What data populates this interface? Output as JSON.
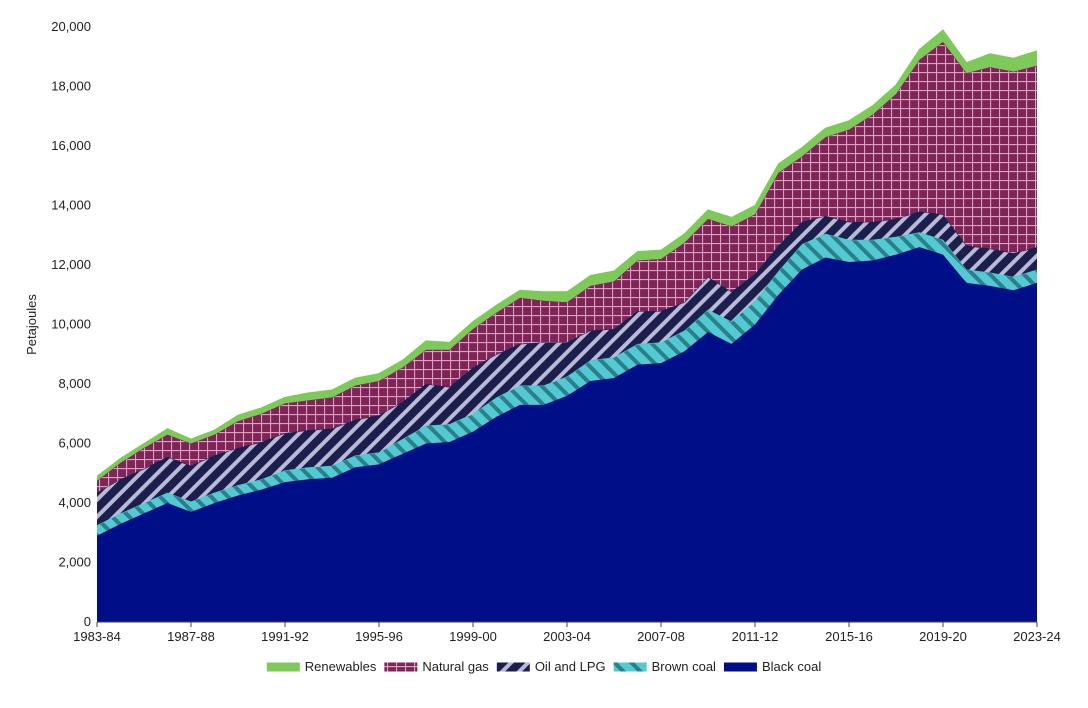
{
  "chart_data": {
    "type": "area",
    "stacked": true,
    "title": "",
    "xlabel": "",
    "ylabel": "Petajoules",
    "ylim": [
      0,
      20000
    ],
    "yticks": [
      0,
      2000,
      4000,
      6000,
      8000,
      10000,
      12000,
      14000,
      16000,
      18000,
      20000
    ],
    "ytick_labels": [
      "0",
      "2,000",
      "4,000",
      "6,000",
      "8,000",
      "10,000",
      "12,000",
      "14,000",
      "16,000",
      "18,000",
      "20,000"
    ],
    "xtick_labels": [
      "1983-84",
      "1987-88",
      "1991-92",
      "1995-96",
      "1999-00",
      "2003-04",
      "2007-08",
      "2011-12",
      "2015-16",
      "2019-20",
      "2023-24"
    ],
    "grid": false,
    "legend_position": "bottom",
    "categories": [
      "1983-84",
      "1984-85",
      "1985-86",
      "1986-87",
      "1987-88",
      "1988-89",
      "1989-90",
      "1990-91",
      "1991-92",
      "1992-93",
      "1993-94",
      "1994-95",
      "1995-96",
      "1996-97",
      "1997-98",
      "1998-99",
      "1999-00",
      "2000-01",
      "2001-02",
      "2002-03",
      "2003-04",
      "2004-05",
      "2005-06",
      "2006-07",
      "2007-08",
      "2008-09",
      "2009-10",
      "2010-11",
      "2011-12",
      "2012-13",
      "2013-14",
      "2014-15",
      "2015-16",
      "2016-17",
      "2017-18",
      "2018-19",
      "2019-20",
      "2020-21",
      "2021-22",
      "2022-23",
      "2023-24"
    ],
    "series": [
      {
        "name": "Black coal",
        "color": "#000f87",
        "pattern": "solid",
        "values": [
          2900,
          3300,
          3650,
          4000,
          3700,
          4000,
          4250,
          4450,
          4700,
          4800,
          4850,
          5200,
          5300,
          5650,
          6000,
          6050,
          6400,
          6900,
          7300,
          7300,
          7600,
          8100,
          8200,
          8650,
          8700,
          9100,
          9750,
          9350,
          10000,
          11000,
          11850,
          12250,
          12100,
          12150,
          12350,
          12600,
          12350,
          11400,
          11300,
          11150,
          11400
        ]
      },
      {
        "name": "Brown coal",
        "color": "#53c9d1",
        "pattern": "hatch",
        "values": [
          350,
          350,
          350,
          350,
          350,
          350,
          350,
          350,
          400,
          400,
          400,
          400,
          400,
          500,
          600,
          600,
          600,
          650,
          650,
          650,
          650,
          700,
          700,
          700,
          700,
          700,
          750,
          750,
          800,
          800,
          850,
          800,
          750,
          700,
          600,
          500,
          500,
          450,
          450,
          450,
          450
        ]
      },
      {
        "name": "Oil and LPG",
        "color": "#1c1f4e",
        "pattern": "hatch",
        "values": [
          1100,
          1150,
          1150,
          1200,
          1200,
          1250,
          1250,
          1250,
          1250,
          1250,
          1250,
          1200,
          1250,
          1250,
          1400,
          1250,
          1550,
          1450,
          1400,
          1450,
          1150,
          1000,
          950,
          1100,
          1050,
          950,
          1100,
          1000,
          900,
          850,
          750,
          600,
          600,
          600,
          600,
          700,
          850,
          800,
          800,
          800,
          750
        ]
      },
      {
        "name": "Natural gas",
        "color": "#7e2457",
        "pattern": "grid",
        "values": [
          400,
          550,
          700,
          750,
          750,
          700,
          900,
          950,
          1000,
          1000,
          1050,
          1150,
          1150,
          1150,
          1150,
          1250,
          1300,
          1400,
          1550,
          1400,
          1350,
          1500,
          1600,
          1700,
          1750,
          2000,
          1950,
          2200,
          2000,
          2450,
          2200,
          2650,
          3100,
          3600,
          4200,
          5100,
          5800,
          5800,
          6100,
          6100,
          6100
        ]
      },
      {
        "name": "Renewables",
        "color": "#7dc95a",
        "pattern": "solid",
        "values": [
          150,
          150,
          150,
          200,
          150,
          150,
          200,
          200,
          200,
          250,
          250,
          250,
          250,
          250,
          300,
          250,
          250,
          250,
          250,
          300,
          350,
          350,
          350,
          300,
          300,
          300,
          300,
          300,
          300,
          300,
          300,
          300,
          300,
          300,
          300,
          350,
          400,
          350,
          450,
          450,
          500
        ]
      }
    ]
  },
  "legend_order": [
    "Renewables",
    "Natural gas",
    "Oil and LPG",
    "Brown coal",
    "Black coal"
  ]
}
